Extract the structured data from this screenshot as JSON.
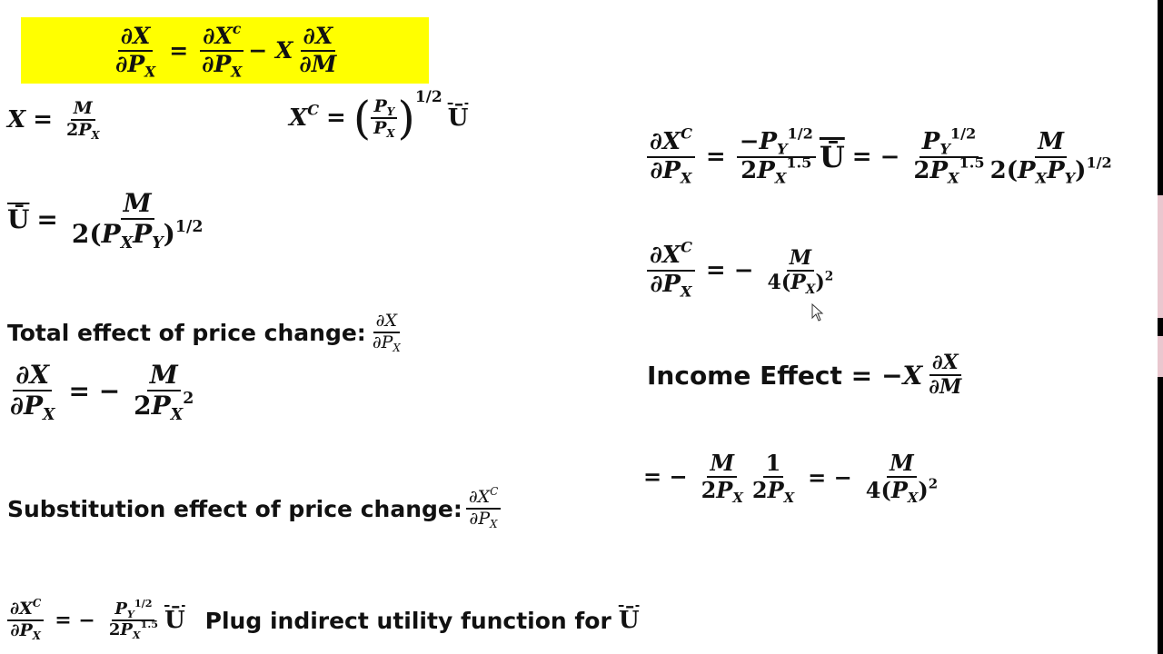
{
  "highlight_color": "#ffff00",
  "eq_slutsky": {
    "lhs": {
      "num": "∂X",
      "den": "∂P_{X}"
    },
    "eq": "=",
    "rhs1": {
      "num": "∂X^{c}",
      "den": "∂P_{X}"
    },
    "minus": "− X",
    "rhs2": {
      "num": "∂X",
      "den": "∂M"
    }
  },
  "eq_demand": {
    "lhs": "X",
    "eq": "=",
    "frac": {
      "num": "M",
      "den": "2P_{X}"
    }
  },
  "eq_compensated": {
    "lhs": "X^{C}",
    "eq": "=",
    "open": "(",
    "frac": {
      "num": "P_{Y}",
      "den": "P_{X}"
    },
    "close": ")",
    "exp": "1/2",
    "ubar": "Ū"
  },
  "eq_utility": {
    "lhs": "Ū",
    "eq": "=",
    "frac": {
      "num": "M",
      "den": "2(P_{X}P_{Y})^{1/2}"
    }
  },
  "total_effect": {
    "label": "Total effect of price change:",
    "frac": {
      "num": "∂X",
      "den": "∂P_{X}"
    },
    "eq": {
      "lhs": {
        "num": "∂X",
        "den": "∂P_{X}"
      },
      "sign": "= −",
      "rhs": {
        "num": "M",
        "den": "2P_{X}^{2}"
      }
    }
  },
  "substitution_effect": {
    "label": "Substitution effect of price change:",
    "frac": {
      "num": "∂X^{C}",
      "den": "∂P_{X}"
    },
    "eq": {
      "lhs": {
        "num": "∂X^{C}",
        "den": "∂P_{X}"
      },
      "sign": "= −",
      "rhs": {
        "num": "P_{Y}^{1/2}",
        "den": "2P_{X}^{1.5}"
      },
      "ubar": "Ū"
    },
    "note": "Plug indirect utility function for",
    "note_ubar": "Ū"
  },
  "right_eq1": {
    "lhs": {
      "num": "∂X^{C}",
      "den": "∂P_{X}"
    },
    "eq1": "=",
    "f1": {
      "num": "−P_{Y}^{1/2}",
      "den": "2P_{X}^{1.5}"
    },
    "ubar": "Ū",
    "eq2": "= −",
    "f2": {
      "num": "P_{Y}^{1/2}",
      "den": "2P_{X}^{1.5}"
    },
    "f3": {
      "num": "M",
      "den": "2(P_{X}P_{Y})^{1/2}"
    }
  },
  "right_eq2": {
    "lhs": {
      "num": "∂X^{C}",
      "den": "∂P_{X}"
    },
    "sign": "= −",
    "rhs": {
      "num": "M",
      "den": "4(P_{X})^{2}"
    }
  },
  "income_effect": {
    "label": "Income Effect =",
    "minus": "−X",
    "frac": {
      "num": "∂X",
      "den": "∂M"
    },
    "line2": {
      "sign1": "= −",
      "f1": {
        "num": "M",
        "den": "2P_{X}"
      },
      "f2": {
        "num": "1",
        "den": "2P_{X}"
      },
      "sign2": "= −",
      "f3": {
        "num": "M",
        "den": "4(P_{X})^{2}"
      }
    }
  }
}
